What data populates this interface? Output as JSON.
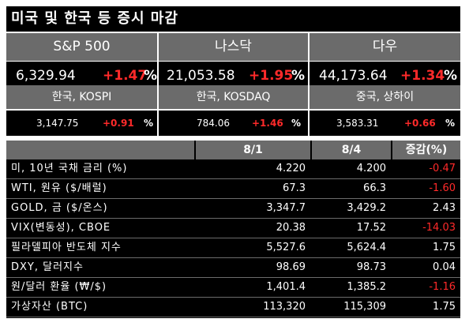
{
  "title": "미국 및 한국 등 증시 마감",
  "big_indices": [
    {
      "name": "S&P 500",
      "value": "6,329.94",
      "change": "+1.47",
      "pct": "%"
    },
    {
      "name": "나스닥",
      "value": "21,053.58",
      "change": "+1.95",
      "pct": "%"
    },
    {
      "name": "다우",
      "value": "44,173.64",
      "change": "+1.34",
      "pct": "%"
    }
  ],
  "small_indices": [
    {
      "name": "한국, KOSPI",
      "value": "3,147.75",
      "change": "+0.91",
      "pct": "%"
    },
    {
      "name": "한국, KOSDAQ",
      "value": "784.06",
      "change": "+1.46",
      "pct": "%"
    },
    {
      "name": "중국, 상하이",
      "value": "3,583.31",
      "change": "+0.66",
      "pct": "%"
    }
  ],
  "table": {
    "headers": [
      "",
      "8/1",
      "8/4",
      "증감(%)"
    ],
    "rows": [
      {
        "label": "미, 10년 국채 금리 (%)",
        "v1": "4.220",
        "v2": "4.200",
        "v3": "-0.47",
        "neg": true
      },
      {
        "label": "WTI, 원유 ($/배럴)",
        "v1": "67.3",
        "v2": "66.3",
        "v3": "-1.60",
        "neg": true
      },
      {
        "label": "GOLD, 금 ($/온스)",
        "v1": "3,347.7",
        "v2": "3,429.2",
        "v3": "2.43",
        "neg": false
      },
      {
        "label": "VIX(변동성), CBOE",
        "v1": "20.38",
        "v2": "17.52",
        "v3": "-14.03",
        "neg": true
      },
      {
        "label": "필라델피아 반도체 지수",
        "v1": "5,527.6",
        "v2": "5,624.4",
        "v3": "1.75",
        "neg": false
      },
      {
        "label": "DXY, 달러지수",
        "v1": "98.69",
        "v2": "98.73",
        "v3": "0.04",
        "neg": false
      },
      {
        "label": "원/달러 환율 (₩/$)",
        "v1": "1,401.4",
        "v2": "1,385.2",
        "v3": "-1.16",
        "neg": true
      },
      {
        "label": "가상자산 (BTC)",
        "v1": "113,320",
        "v2": "115,309",
        "v3": "1.75",
        "neg": false
      }
    ]
  }
}
